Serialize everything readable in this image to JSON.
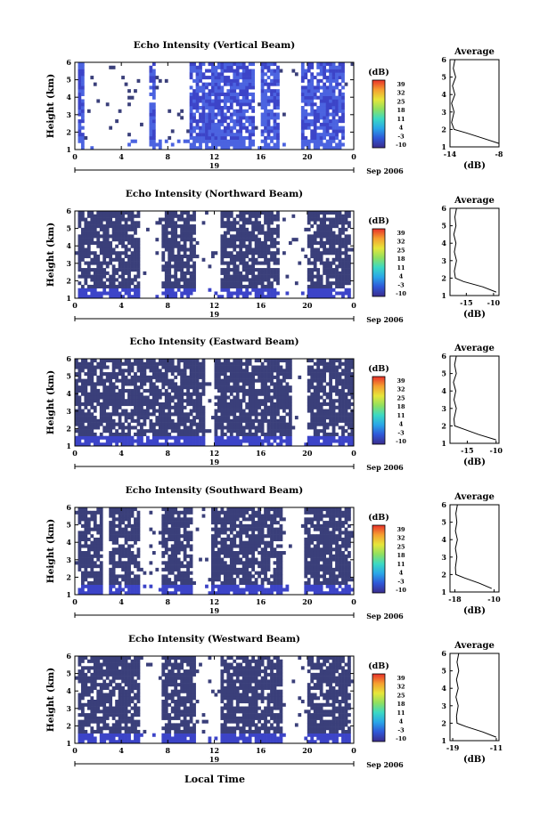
{
  "figure": {
    "x_axis_title": "Local Time",
    "date_label": "Sep 2006",
    "day_label": "19",
    "avg_title": "Average",
    "avg_xlabel": "(dB)",
    "colorbar_title": "(dB)",
    "y_axis_title": "Height (km)"
  },
  "colors": {
    "background": "#ffffff",
    "fill_dark": "#3a3f7a",
    "fill_blue": "#3c44c8",
    "fill_light_blue": "#4b63e0"
  },
  "colorbar": {
    "tick_labels": [
      "39",
      "32",
      "25",
      "18",
      "11",
      "4",
      "-3",
      "-10"
    ],
    "stops": [
      "#3a2c8c",
      "#2f57d8",
      "#2aa6e8",
      "#3bd9c4",
      "#8fe060",
      "#e6e63a",
      "#f5a030",
      "#e8302a"
    ]
  },
  "chart_data": [
    {
      "type": "heatmap",
      "title": "Echo Intensity (Vertical Beam)",
      "xlabel": "",
      "ylabel": "Height (km)",
      "x_ticks": [
        "0",
        "4",
        "8",
        "12",
        "16",
        "20",
        "0"
      ],
      "y_ticks": [
        "1",
        "2",
        "3",
        "4",
        "5",
        "6"
      ],
      "xlim": [
        0,
        24
      ],
      "ylim": [
        1,
        6
      ],
      "clim": [
        -10,
        39
      ],
      "dominant_value_dB": -10,
      "data_hours": [
        [
          0.2,
          0.7
        ],
        [
          6.5,
          6.8
        ],
        [
          10,
          15.5
        ],
        [
          16,
          17.5
        ],
        [
          19.5,
          23.3
        ]
      ],
      "avg_profile": {
        "title": "Average",
        "xlabel": "(dB)",
        "x_ticks": [
          "-14",
          "-8"
        ],
        "xlim": [
          -14,
          -8
        ],
        "height_km": [
          1.2,
          1.5,
          1.8,
          2.0,
          2.4,
          3.0,
          3.5,
          4.0,
          4.5,
          5.0,
          5.5,
          6.0
        ],
        "mean_dB": [
          -8.0,
          -10.0,
          -12.0,
          -13.5,
          -13.8,
          -13.5,
          -13.8,
          -13.4,
          -13.7,
          -13.3,
          -13.6,
          -13.4
        ]
      }
    },
    {
      "type": "heatmap",
      "title": "Echo Intensity (Northward Beam)",
      "xlabel": "",
      "ylabel": "Height (km)",
      "x_ticks": [
        "0",
        "4",
        "8",
        "12",
        "16",
        "20",
        "0"
      ],
      "y_ticks": [
        "1",
        "2",
        "3",
        "4",
        "5",
        "6"
      ],
      "xlim": [
        0,
        24
      ],
      "ylim": [
        1,
        6
      ],
      "clim": [
        -10,
        39
      ],
      "dominant_value_dB": -10,
      "data_hours": [
        [
          0.2,
          5.5
        ],
        [
          7.5,
          10.5
        ],
        [
          12.5,
          17.5
        ],
        [
          20,
          23.8
        ]
      ],
      "avg_profile": {
        "title": "Average",
        "xlabel": "(dB)",
        "x_ticks": [
          "-15",
          "-10"
        ],
        "xlim": [
          -18,
          -9
        ],
        "height_km": [
          1.2,
          1.5,
          1.8,
          2.0,
          2.4,
          3.0,
          3.5,
          4.0,
          4.5,
          5.0,
          5.5,
          6.0
        ],
        "mean_dB": [
          -9.5,
          -12.0,
          -15.5,
          -17.0,
          -17.2,
          -16.8,
          -17.2,
          -16.9,
          -17.3,
          -16.9,
          -17.1,
          -16.8
        ]
      }
    },
    {
      "type": "heatmap",
      "title": "Echo Intensity (Eastward Beam)",
      "xlabel": "",
      "ylabel": "Height (km)",
      "x_ticks": [
        "0",
        "4",
        "8",
        "12",
        "16",
        "20",
        "0"
      ],
      "y_ticks": [
        "1",
        "2",
        "3",
        "4",
        "5",
        "6"
      ],
      "xlim": [
        0,
        24
      ],
      "ylim": [
        1,
        6
      ],
      "clim": [
        -10,
        39
      ],
      "dominant_value_dB": -10,
      "data_hours": [
        [
          0.1,
          11.2
        ],
        [
          12,
          18.6
        ],
        [
          20,
          23.9
        ]
      ],
      "avg_profile": {
        "title": "Average",
        "xlabel": "(dB)",
        "x_ticks": [
          "-15",
          "-10"
        ],
        "xlim": [
          -18,
          -9.5
        ],
        "height_km": [
          1.2,
          1.5,
          1.8,
          2.0,
          2.4,
          3.0,
          3.5,
          4.0,
          4.5,
          5.0,
          5.5,
          6.0
        ],
        "mean_dB": [
          -10.0,
          -13.0,
          -15.5,
          -17.2,
          -17.3,
          -16.9,
          -17.3,
          -17.0,
          -17.4,
          -16.9,
          -17.2,
          -16.9
        ]
      }
    },
    {
      "type": "heatmap",
      "title": "Echo Intensity (Southward Beam)",
      "xlabel": "",
      "ylabel": "Height (km)",
      "x_ticks": [
        "0",
        "4",
        "8",
        "12",
        "16",
        "20",
        "0"
      ],
      "y_ticks": [
        "1",
        "2",
        "3",
        "4",
        "5",
        "6"
      ],
      "xlim": [
        0,
        24
      ],
      "ylim": [
        1,
        6
      ],
      "clim": [
        -10,
        39
      ],
      "dominant_value_dB": -10,
      "data_hours": [
        [
          0.3,
          2.5
        ],
        [
          3,
          5.5
        ],
        [
          7.5,
          10.2
        ],
        [
          11.8,
          17.8
        ],
        [
          19.8,
          23.8
        ]
      ],
      "avg_profile": {
        "title": "Average",
        "xlabel": "(dB)",
        "x_ticks": [
          "-18",
          "-10"
        ],
        "xlim": [
          -19,
          -9
        ],
        "height_km": [
          1.2,
          1.5,
          1.8,
          2.0,
          2.4,
          3.0,
          3.5,
          4.0,
          4.5,
          5.0,
          5.5,
          6.0
        ],
        "mean_dB": [
          -10.5,
          -13.0,
          -16.0,
          -17.8,
          -17.9,
          -17.6,
          -17.9,
          -17.5,
          -17.9,
          -17.6,
          -17.8,
          -17.5
        ]
      }
    },
    {
      "type": "heatmap",
      "title": "Echo Intensity (Westward Beam)",
      "xlabel": "Local Time",
      "ylabel": "Height (km)",
      "x_ticks": [
        "0",
        "4",
        "8",
        "12",
        "16",
        "20",
        "0"
      ],
      "y_ticks": [
        "1",
        "2",
        "3",
        "4",
        "5",
        "6"
      ],
      "xlim": [
        0,
        24
      ],
      "ylim": [
        1,
        6
      ],
      "clim": [
        -10,
        39
      ],
      "dominant_value_dB": -10,
      "data_hours": [
        [
          0.3,
          5.5
        ],
        [
          7.5,
          10.5
        ],
        [
          12.5,
          17.8
        ],
        [
          20,
          23.8
        ]
      ],
      "avg_profile": {
        "title": "Average",
        "xlabel": "(dB)",
        "x_ticks": [
          "-19",
          "-11"
        ],
        "xlim": [
          -19.5,
          -10.5
        ],
        "height_km": [
          1.2,
          1.5,
          1.8,
          2.0,
          2.4,
          3.0,
          3.5,
          4.0,
          4.5,
          5.0,
          5.5,
          6.0
        ],
        "mean_dB": [
          -11.0,
          -13.5,
          -16.5,
          -18.2,
          -18.3,
          -18.0,
          -18.4,
          -18.0,
          -18.3,
          -17.9,
          -18.2,
          -17.9
        ]
      }
    }
  ]
}
